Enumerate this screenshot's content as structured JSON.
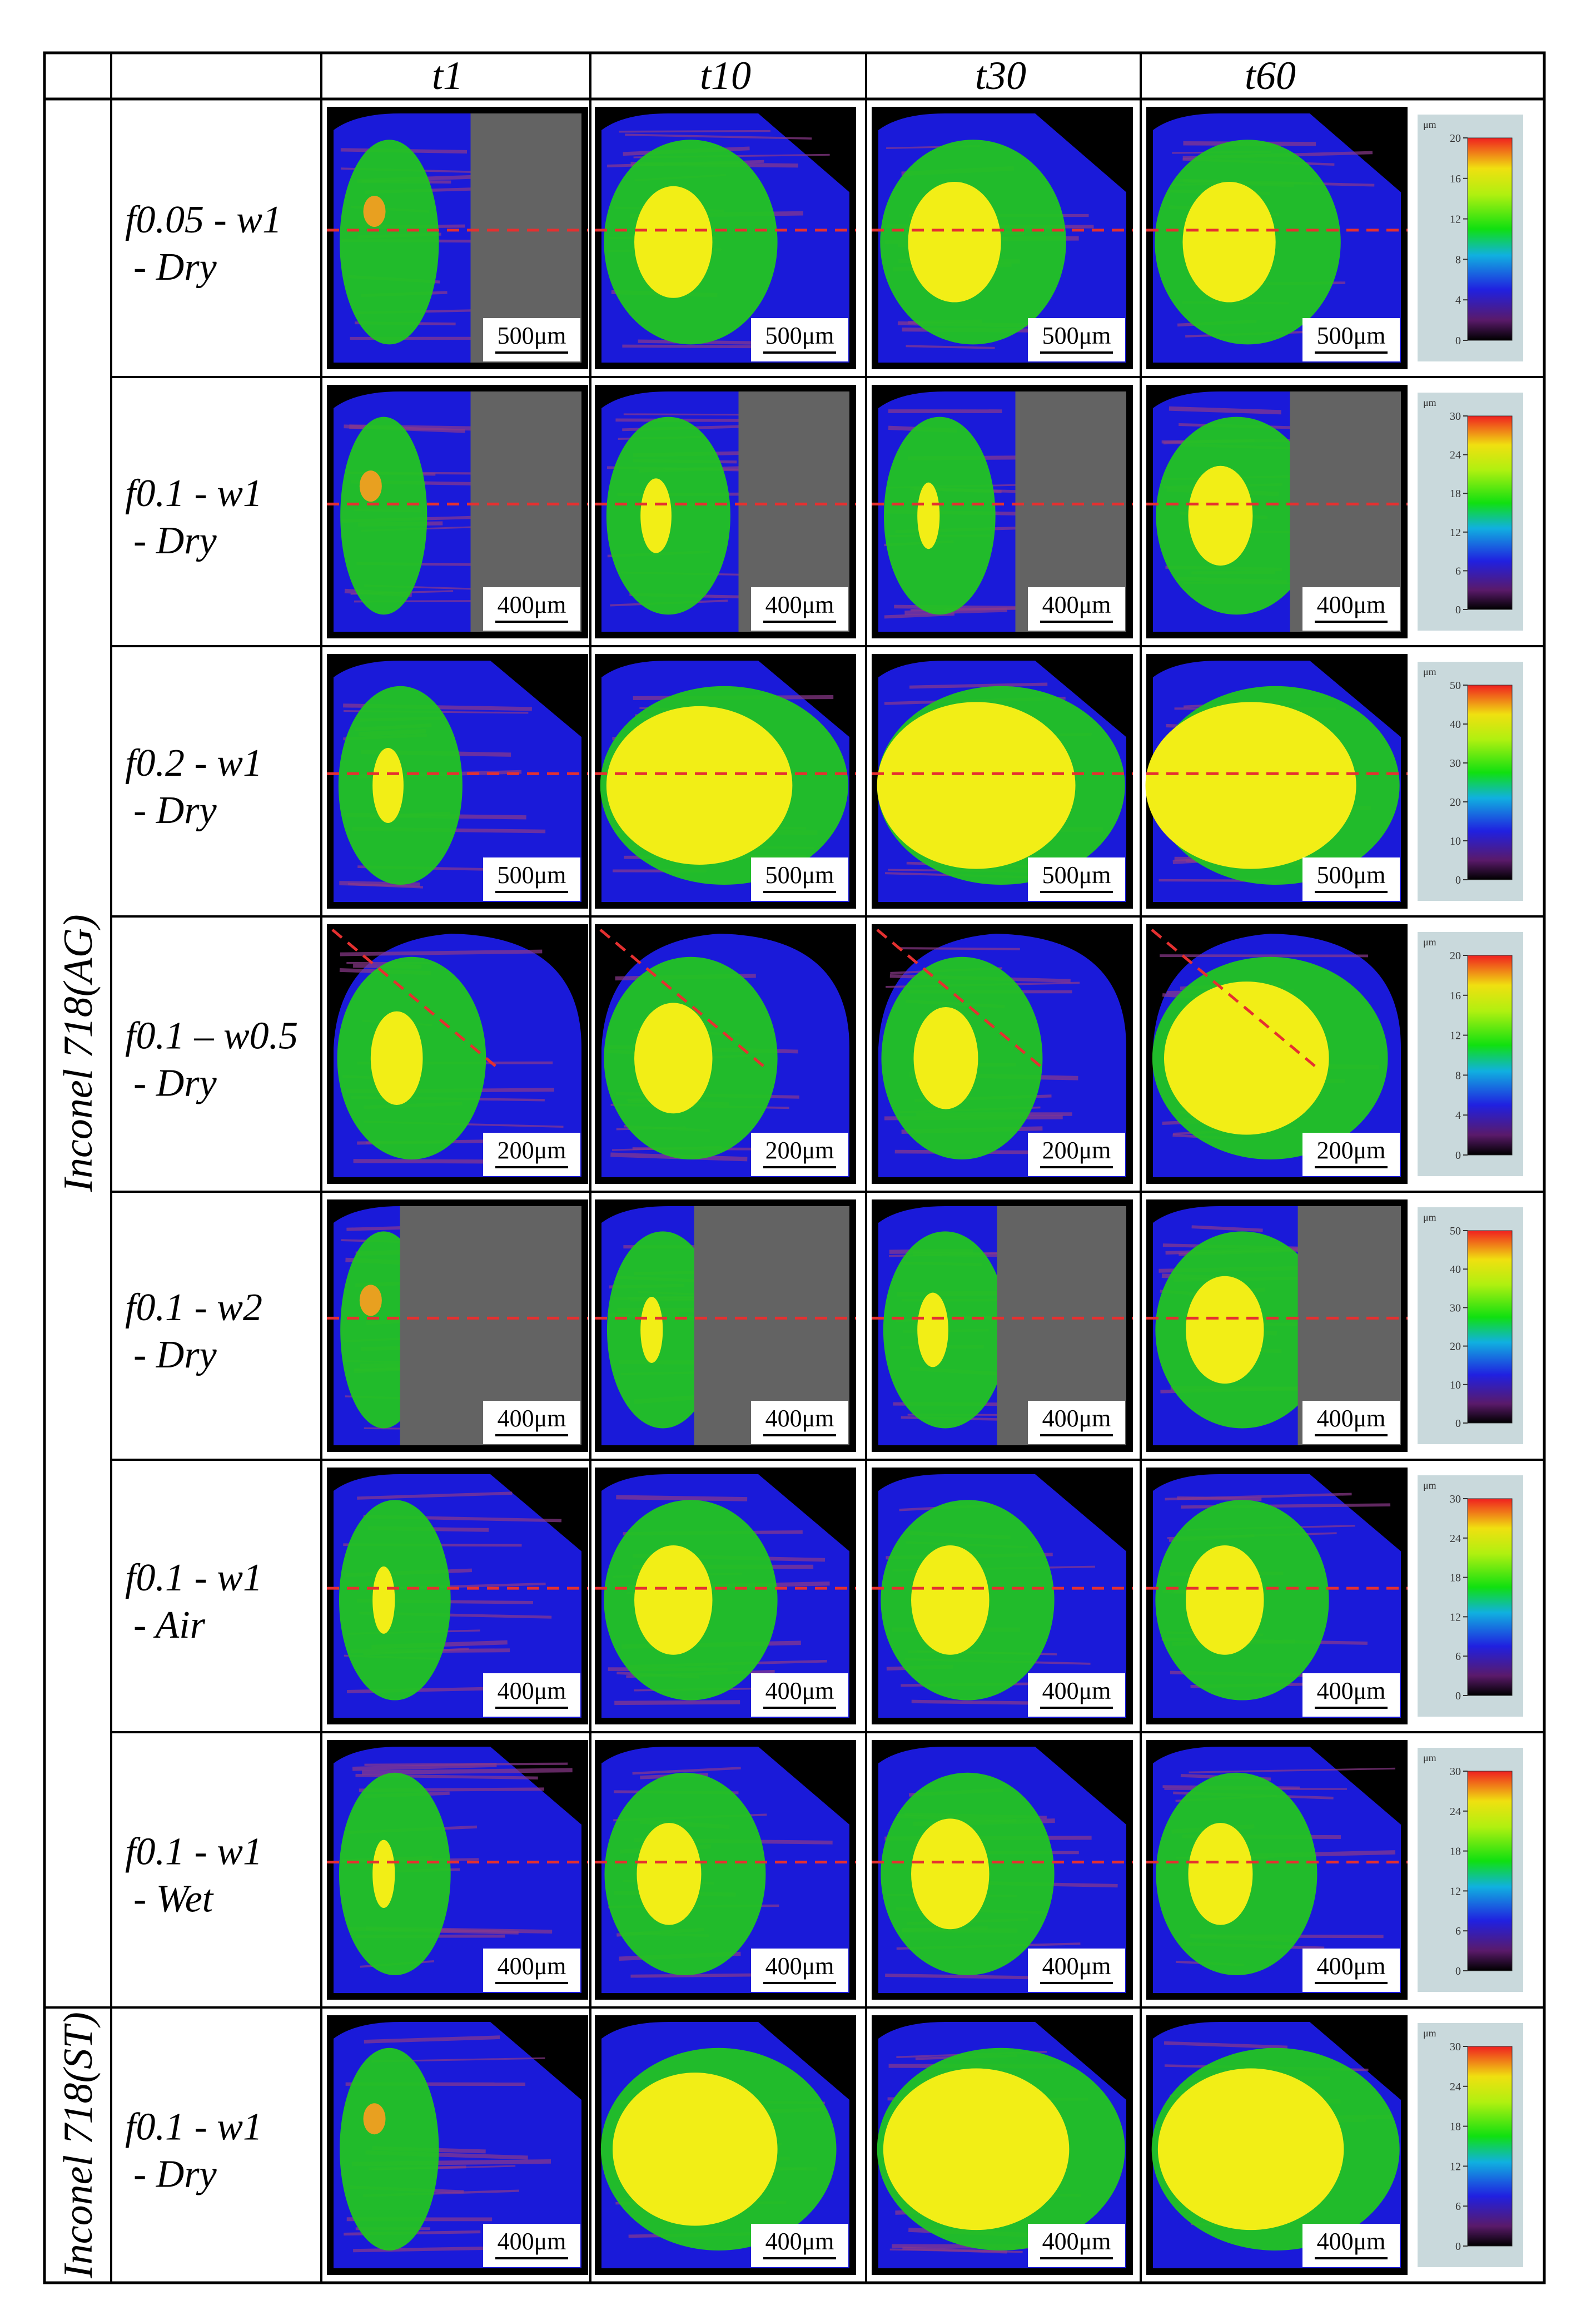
{
  "figure": {
    "columns": [
      "t1",
      "t10",
      "t30",
      "t60"
    ],
    "groups": [
      {
        "label": "Inconel 718(AG)",
        "row_span": 7
      },
      {
        "label": "Inconel 718(ST)",
        "row_span": 1
      }
    ],
    "rows": [
      {
        "label_line1": "f0.05 - w1",
        "label_line2": "- Dry",
        "scale_labels": [
          "500μm",
          "500μm",
          "500μm",
          "500μm"
        ],
        "colorbar": {
          "unit": "μm",
          "ticks": [
            "0",
            "4",
            "8",
            "12",
            "16",
            "20"
          ]
        },
        "profile_line": "horizontal",
        "wear_extent": [
          0.25,
          0.55,
          0.6,
          0.6
        ],
        "masked_region": [
          true,
          false,
          false,
          false
        ]
      },
      {
        "label_line1": "f0.1 - w1",
        "label_line2": "- Dry",
        "scale_labels": [
          "400μm",
          "400μm",
          "400μm",
          "400μm"
        ],
        "colorbar": {
          "unit": "μm",
          "ticks": [
            "0",
            "6",
            "12",
            "18",
            "24",
            "30"
          ]
        },
        "profile_line": "horizontal",
        "wear_extent": [
          0.2,
          0.35,
          0.3,
          0.5
        ],
        "masked_region": [
          true,
          true,
          true,
          true
        ]
      },
      {
        "label_line1": "f0.2 - w1",
        "label_line2": "- Dry",
        "scale_labels": [
          "500μm",
          "500μm",
          "500μm",
          "500μm"
        ],
        "colorbar": {
          "unit": "μm",
          "ticks": [
            "0",
            "10",
            "20",
            "30",
            "40",
            "50"
          ]
        },
        "profile_line": "horizontal",
        "wear_extent": [
          0.35,
          0.85,
          0.9,
          0.95
        ],
        "masked_region": [
          false,
          false,
          false,
          false
        ]
      },
      {
        "label_line1": "f0.1 – w0.5",
        "label_line2": "- Dry",
        "scale_labels": [
          "200μm",
          "200μm",
          "200μm",
          "200μm"
        ],
        "colorbar": {
          "unit": "μm",
          "ticks": [
            "0",
            "4",
            "8",
            "12",
            "16",
            "20"
          ]
        },
        "profile_line": "diagonal",
        "wear_extent": [
          0.45,
          0.55,
          0.5,
          0.8
        ],
        "masked_region": [
          false,
          false,
          false,
          false
        ]
      },
      {
        "label_line1": "f0.1 - w2",
        "label_line2": "- Dry",
        "scale_labels": [
          "400μm",
          "400μm",
          "400μm",
          "400μm"
        ],
        "colorbar": {
          "unit": "μm",
          "ticks": [
            "0",
            "10",
            "20",
            "30",
            "40",
            "50"
          ]
        },
        "profile_line": "horizontal",
        "wear_extent": [
          0.2,
          0.3,
          0.35,
          0.55
        ],
        "masked_region": [
          true,
          true,
          true,
          true
        ]
      },
      {
        "label_line1": "f0.1 - w1",
        "label_line2": "- Air",
        "scale_labels": [
          "400μm",
          "400μm",
          "400μm",
          "400μm"
        ],
        "colorbar": {
          "unit": "μm",
          "ticks": [
            "0",
            "6",
            "12",
            "18",
            "24",
            "30"
          ]
        },
        "profile_line": "horizontal",
        "wear_extent": [
          0.3,
          0.55,
          0.55,
          0.55
        ],
        "masked_region": [
          false,
          false,
          false,
          false
        ]
      },
      {
        "label_line1": "f0.1 - w1",
        "label_line2": "- Wet",
        "scale_labels": [
          "400μm",
          "400μm",
          "400μm",
          "400μm"
        ],
        "colorbar": {
          "unit": "μm",
          "ticks": [
            "0",
            "6",
            "12",
            "18",
            "24",
            "30"
          ]
        },
        "profile_line": "horizontal",
        "wear_extent": [
          0.3,
          0.5,
          0.55,
          0.5
        ],
        "masked_region": [
          false,
          false,
          false,
          false
        ]
      },
      {
        "label_line1": "f0.1 - w1",
        "label_line2": "- Dry",
        "scale_labels": [
          "400μm",
          "400μm",
          "400μm",
          "400μm"
        ],
        "colorbar": {
          "unit": "μm",
          "ticks": [
            "0",
            "6",
            "12",
            "18",
            "24",
            "30"
          ]
        },
        "profile_line": "none",
        "wear_extent": [
          0.25,
          0.8,
          0.85,
          0.85
        ],
        "masked_region": [
          false,
          false,
          false,
          false
        ]
      }
    ],
    "colors": {
      "background": "#000000",
      "tool": "#1a1ad9",
      "wear_low": "#8b3a8b",
      "wear_mid": "#22c422",
      "wear_high": "#f2ee16",
      "wear_peak": "#e8a020",
      "mask": "#636363",
      "profile_line": "#e53030",
      "colorbar_bg": "#c9d9dc"
    }
  }
}
